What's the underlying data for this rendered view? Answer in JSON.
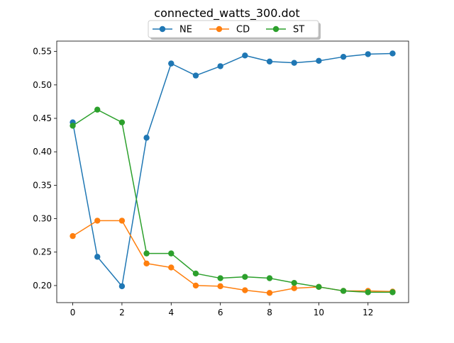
{
  "chart_data": {
    "type": "line",
    "title": "connected_watts_300.dot",
    "xlabel": "",
    "ylabel": "",
    "x": [
      0,
      1,
      2,
      3,
      4,
      5,
      6,
      7,
      8,
      9,
      10,
      11,
      12,
      13
    ],
    "xlim": [
      -0.65,
      13.65
    ],
    "ylim": [
      0.1745,
      0.5655
    ],
    "x_ticks": [
      0,
      2,
      4,
      6,
      8,
      10,
      12
    ],
    "y_ticks": [
      0.2,
      0.25,
      0.3,
      0.35,
      0.4,
      0.45,
      0.5,
      0.55
    ],
    "y_tick_labels": [
      "0.20",
      "0.25",
      "0.30",
      "0.35",
      "0.40",
      "0.45",
      "0.50",
      "0.55"
    ],
    "grid": false,
    "legend_position": "top-center",
    "series": [
      {
        "name": "NE",
        "color": "#1f77b4",
        "values": [
          0.444,
          0.243,
          0.199,
          0.421,
          0.532,
          0.514,
          0.528,
          0.544,
          0.535,
          0.533,
          0.536,
          0.542,
          0.546,
          0.547
        ]
      },
      {
        "name": "CD",
        "color": "#ff7f0e",
        "values": [
          0.274,
          0.297,
          0.297,
          0.233,
          0.227,
          0.2,
          0.199,
          0.193,
          0.189,
          0.196,
          0.198,
          0.192,
          0.192,
          0.191
        ]
      },
      {
        "name": "ST",
        "color": "#2ca02c",
        "values": [
          0.439,
          0.463,
          0.444,
          0.248,
          0.248,
          0.218,
          0.211,
          0.213,
          0.211,
          0.204,
          0.198,
          0.192,
          0.19,
          0.19
        ]
      }
    ]
  }
}
